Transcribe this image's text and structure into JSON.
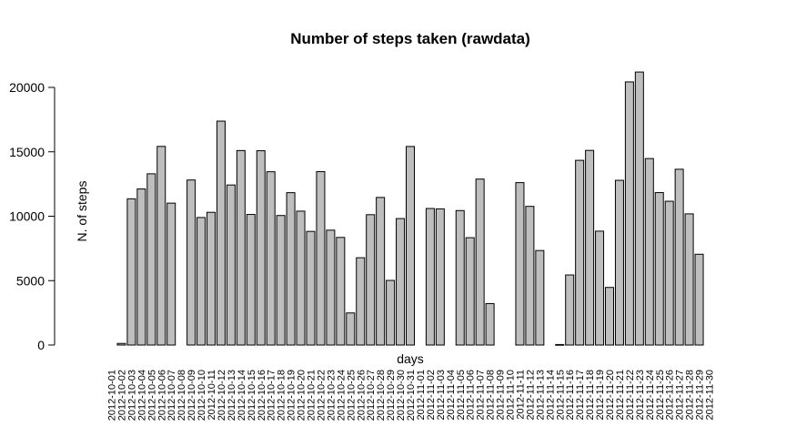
{
  "chart_data": {
    "type": "bar",
    "title": "Number of steps taken (rawdata)",
    "xlabel": "days",
    "ylabel": "N. of steps",
    "ylim": [
      0,
      21500
    ],
    "yticks": [
      0,
      5000,
      10000,
      15000,
      20000
    ],
    "grid": false,
    "legend": "none",
    "bar_color": "#bebebe",
    "edge_color": "#000000",
    "categories": [
      "2012-10-01",
      "2012-10-02",
      "2012-10-03",
      "2012-10-04",
      "2012-10-05",
      "2012-10-06",
      "2012-10-07",
      "2012-10-08",
      "2012-10-09",
      "2012-10-10",
      "2012-10-11",
      "2012-10-12",
      "2012-10-13",
      "2012-10-14",
      "2012-10-15",
      "2012-10-16",
      "2012-10-17",
      "2012-10-18",
      "2012-10-19",
      "2012-10-20",
      "2012-10-21",
      "2012-10-22",
      "2012-10-23",
      "2012-10-24",
      "2012-10-25",
      "2012-10-26",
      "2012-10-27",
      "2012-10-28",
      "2012-10-29",
      "2012-10-30",
      "2012-10-31",
      "2012-11-01",
      "2012-11-02",
      "2012-11-03",
      "2012-11-04",
      "2012-11-05",
      "2012-11-06",
      "2012-11-07",
      "2012-11-08",
      "2012-11-09",
      "2012-11-10",
      "2012-11-11",
      "2012-11-12",
      "2012-11-13",
      "2012-11-14",
      "2012-11-15",
      "2012-11-16",
      "2012-11-17",
      "2012-11-18",
      "2012-11-19",
      "2012-11-20",
      "2012-11-21",
      "2012-11-22",
      "2012-11-23",
      "2012-11-24",
      "2012-11-25",
      "2012-11-26",
      "2012-11-27",
      "2012-11-28",
      "2012-11-29",
      "2012-11-30"
    ],
    "values": [
      null,
      126,
      11352,
      12116,
      13294,
      15420,
      11015,
      null,
      12811,
      9900,
      10304,
      17382,
      12426,
      15098,
      10139,
      15084,
      13452,
      10056,
      11829,
      10395,
      8821,
      13460,
      8918,
      8355,
      2492,
      6778,
      10119,
      11458,
      5018,
      9819,
      15414,
      null,
      10600,
      10571,
      null,
      10439,
      8334,
      12883,
      3219,
      null,
      null,
      12608,
      10765,
      7336,
      null,
      41,
      5441,
      14339,
      15110,
      8841,
      4472,
      12787,
      20427,
      21194,
      14478,
      11834,
      11162,
      13646,
      10183,
      7047,
      null
    ]
  }
}
